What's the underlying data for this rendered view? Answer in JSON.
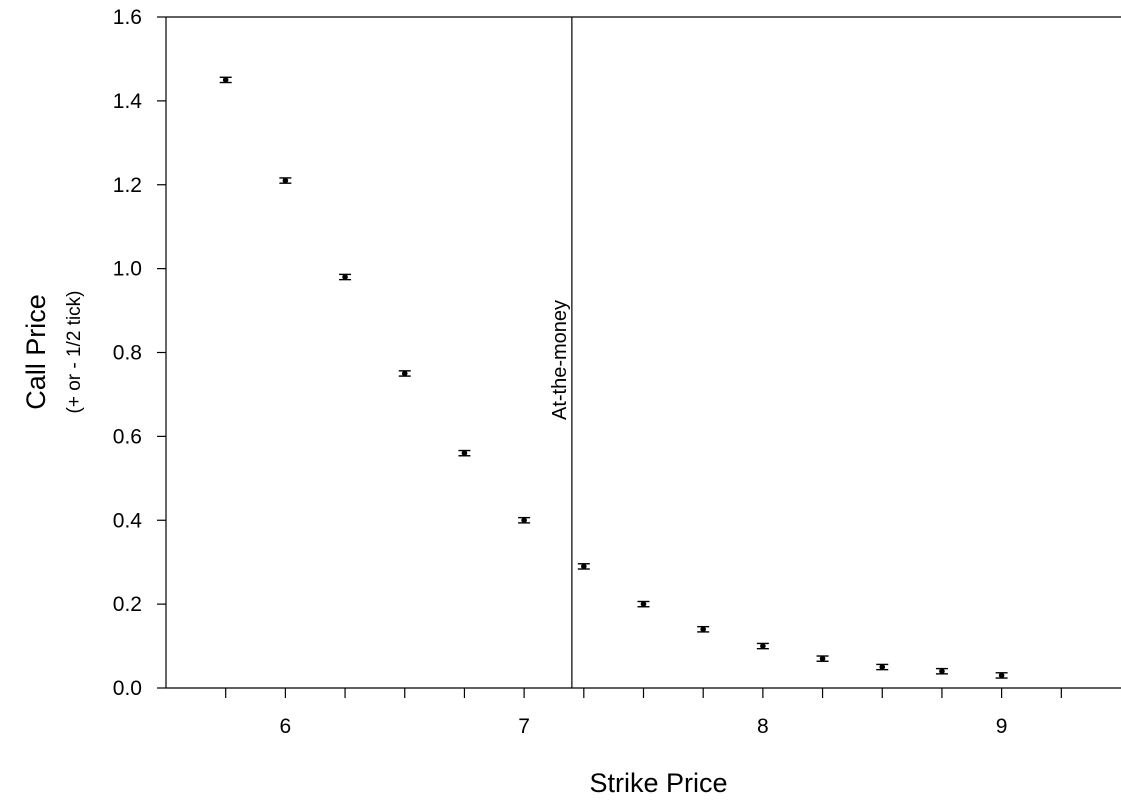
{
  "chart_data": {
    "type": "scatter",
    "title": "",
    "xlabel": "Strike Price",
    "ylabel": "Call Price",
    "ylabel_sub": "(+ or - 1/2 tick)",
    "xlim": [
      5.5,
      9.5
    ],
    "ylim": [
      0.0,
      1.6
    ],
    "x_major_ticks": [
      6,
      7,
      8,
      9
    ],
    "x_minor_ticks": [
      5.75,
      6.25,
      6.5,
      6.75,
      7.25,
      7.5,
      7.75,
      8.25,
      8.5,
      8.75,
      9.25
    ],
    "x_tick_labels": [
      "6",
      "7",
      "8",
      "9"
    ],
    "y_ticks": [
      0.0,
      0.2,
      0.4,
      0.6,
      0.8,
      1.0,
      1.2,
      1.4,
      1.6
    ],
    "y_tick_labels": [
      "0.0",
      "0.2",
      "0.4",
      "0.6",
      "0.8",
      "1.0",
      "1.2",
      "1.4",
      "1.6"
    ],
    "grid": false,
    "error_half_width": 0.00625,
    "points": [
      {
        "x": 5.75,
        "y": 1.45
      },
      {
        "x": 6.0,
        "y": 1.21
      },
      {
        "x": 6.25,
        "y": 0.98
      },
      {
        "x": 6.5,
        "y": 0.75
      },
      {
        "x": 6.75,
        "y": 0.56
      },
      {
        "x": 7.0,
        "y": 0.4
      },
      {
        "x": 7.25,
        "y": 0.29
      },
      {
        "x": 7.5,
        "y": 0.2
      },
      {
        "x": 7.75,
        "y": 0.14
      },
      {
        "x": 8.0,
        "y": 0.1
      },
      {
        "x": 8.25,
        "y": 0.07
      },
      {
        "x": 8.5,
        "y": 0.05
      },
      {
        "x": 8.75,
        "y": 0.04
      },
      {
        "x": 9.0,
        "y": 0.03
      }
    ],
    "reference_line": {
      "x": 7.2,
      "label": "At-the-money"
    }
  }
}
